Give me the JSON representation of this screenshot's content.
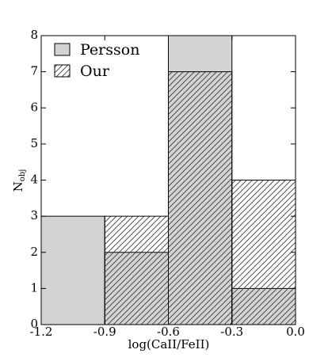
{
  "chart_data": {
    "type": "histogram",
    "xlabel": "log(CaII/FeII)",
    "ylabel": "N",
    "ylabel_subscript": "obj",
    "bins": [
      -1.2,
      -0.9,
      -0.6,
      -0.3,
      0
    ],
    "series": [
      {
        "name": "Persson",
        "color": "#d3d3d3",
        "hatch": false,
        "values": [
          3,
          2,
          8,
          1
        ]
      },
      {
        "name": "Our",
        "color": "#333333",
        "hatch": true,
        "values": [
          0,
          3,
          7,
          4
        ]
      }
    ],
    "xlim": [
      -1.2,
      0
    ],
    "ylim": [
      0,
      8
    ],
    "xticks": [
      -1.2,
      -0.9,
      -0.6,
      -0.3,
      {
        "value": 0,
        "label": "0.0"
      }
    ],
    "yticks": [
      0,
      1,
      2,
      3,
      4,
      5,
      6,
      7,
      8
    ],
    "legend": "upper-left"
  }
}
